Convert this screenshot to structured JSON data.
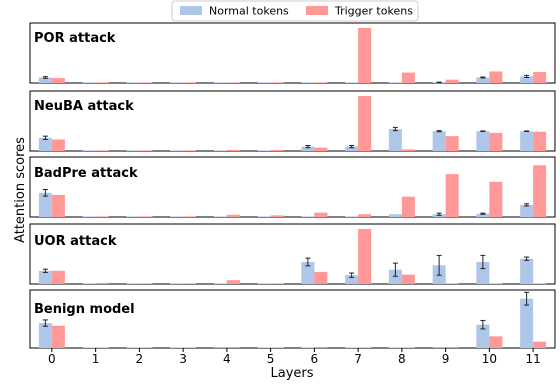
{
  "colors": {
    "normal": "#aec7e8",
    "trigger": "#ff9896",
    "axis": "#000000",
    "error": "#222222"
  },
  "legend": {
    "placement": "top-center",
    "items": [
      "Normal tokens",
      "Trigger tokens"
    ]
  },
  "chart_data": {
    "type": "bar",
    "xlabel": "Layers",
    "ylabel": "Attention scores",
    "categories": [
      "0",
      "1",
      "2",
      "3",
      "4",
      "5",
      "6",
      "7",
      "8",
      "9",
      "10",
      "11"
    ],
    "shared_x": true,
    "grid": false,
    "ylim": [
      0,
      1
    ],
    "panels": [
      {
        "title": "POR attack",
        "series": [
          {
            "name": "Normal tokens",
            "values": [
              0.1,
              0.004,
              0.004,
              0.004,
              0.004,
              0.004,
              0.004,
              0.004,
              0.004,
              0.01,
              0.1,
              0.12
            ],
            "errors": [
              0.015,
              0,
              0,
              0,
              0,
              0,
              0,
              0,
              0,
              0.005,
              0.008,
              0.02
            ]
          },
          {
            "name": "Trigger tokens",
            "values": [
              0.09,
              0.004,
              0.006,
              0.006,
              0.008,
              0.006,
              0.006,
              1.0,
              0.19,
              0.06,
              0.21,
              0.2
            ],
            "errors": [
              0,
              0,
              0,
              0,
              0,
              0,
              0,
              0,
              0,
              0,
              0,
              0
            ]
          }
        ]
      },
      {
        "title": "NeuBA attack",
        "series": [
          {
            "name": "Normal tokens",
            "values": [
              0.24,
              0.004,
              0.004,
              0.004,
              0.004,
              0.004,
              0.08,
              0.08,
              0.4,
              0.36,
              0.36,
              0.36
            ],
            "errors": [
              0.03,
              0,
              0,
              0,
              0,
              0,
              0.02,
              0.02,
              0.03,
              0.01,
              0.005,
              0.005
            ]
          },
          {
            "name": "Trigger tokens",
            "values": [
              0.21,
              0.006,
              0.008,
              0.01,
              0.02,
              0.02,
              0.06,
              1.0,
              0.03,
              0.27,
              0.33,
              0.35
            ],
            "errors": [
              0,
              0,
              0,
              0,
              0,
              0,
              0,
              0,
              0,
              0,
              0,
              0
            ]
          }
        ]
      },
      {
        "title": "BadPre attack",
        "series": [
          {
            "name": "Normal tokens",
            "values": [
              0.44,
              0.006,
              0.006,
              0.006,
              0.01,
              0.004,
              0.004,
              0.01,
              0.05,
              0.05,
              0.06,
              0.22
            ],
            "errors": [
              0.06,
              0,
              0,
              0,
              0,
              0,
              0,
              0,
              0,
              0.02,
              0.01,
              0.02
            ]
          },
          {
            "name": "Trigger tokens",
            "values": [
              0.4,
              0.01,
              0.01,
              0.01,
              0.04,
              0.03,
              0.08,
              0.05,
              0.37,
              0.78,
              0.64,
              0.94
            ],
            "errors": [
              0,
              0,
              0,
              0,
              0,
              0,
              0,
              0,
              0,
              0,
              0,
              0
            ]
          }
        ]
      },
      {
        "title": "UOR attack",
        "series": [
          {
            "name": "Normal tokens",
            "values": [
              0.24,
              0.006,
              0.006,
              0.006,
              0.006,
              0.006,
              0.4,
              0.16,
              0.26,
              0.34,
              0.4,
              0.46
            ],
            "errors": [
              0.03,
              0,
              0,
              0,
              0,
              0,
              0.07,
              0.04,
              0.12,
              0.18,
              0.12,
              0.03
            ]
          },
          {
            "name": "Trigger tokens",
            "values": [
              0.24,
              0.02,
              0.01,
              0.01,
              0.07,
              0.01,
              0.22,
              1.0,
              0.17,
              0.01,
              0.01,
              0.01
            ],
            "errors": [
              0,
              0,
              0,
              0,
              0,
              0,
              0,
              0,
              0,
              0,
              0,
              0
            ]
          }
        ]
      },
      {
        "title": "Benign model",
        "series": [
          {
            "name": "Normal tokens",
            "values": [
              0.47,
              0.01,
              0.01,
              0.01,
              0.02,
              0.01,
              0.01,
              0.01,
              0.01,
              0.02,
              0.44,
              0.93
            ],
            "errors": [
              0.06,
              0,
              0,
              0,
              0,
              0,
              0,
              0,
              0,
              0,
              0.08,
              0.12
            ]
          },
          {
            "name": "Trigger tokens",
            "values": [
              0.42,
              0.01,
              0.01,
              0.01,
              0.02,
              0.01,
              0.02,
              0.01,
              0.01,
              0.02,
              0.22,
              0.12
            ],
            "errors": [
              0,
              0,
              0,
              0,
              0,
              0,
              0,
              0,
              0,
              0,
              0,
              0
            ]
          }
        ]
      }
    ]
  }
}
